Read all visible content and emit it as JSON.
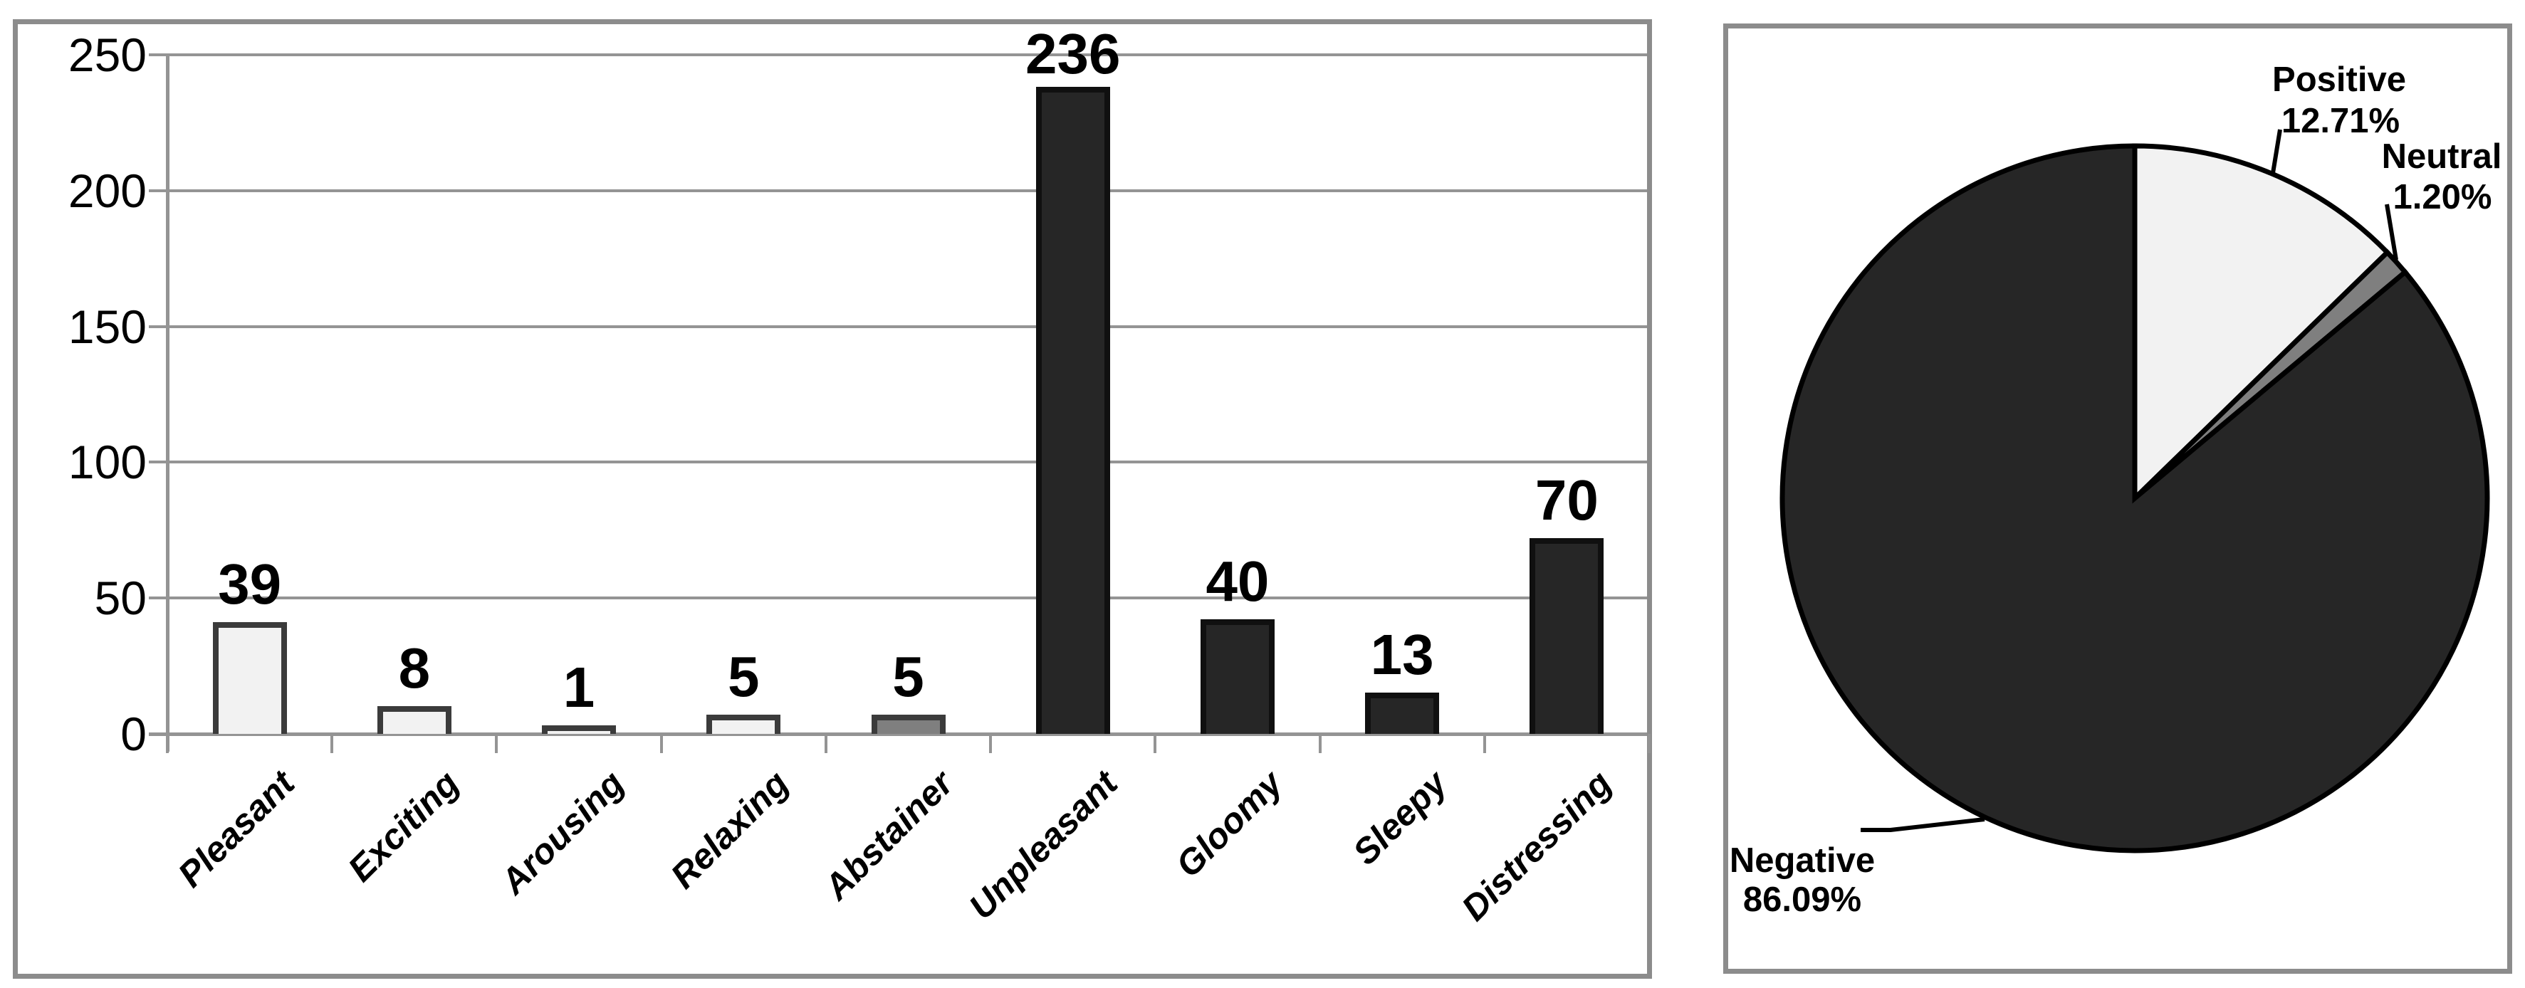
{
  "figure": {
    "description": "Two-panel figure: bar chart of word categories and pie chart of sentiment share"
  },
  "palette": {
    "positive_fill": "#f2f2f2",
    "neutral_fill": "#7f7f7f",
    "negative_fill": "#262626",
    "light_bar_stroke": "#3b3b3b",
    "dark_bar_stroke": "#101010",
    "grid": "#949494",
    "panel_border": "#8c8c8c",
    "pie_outline": "#000000",
    "text": "#000000"
  },
  "chart_data": [
    {
      "type": "bar",
      "title": "",
      "xlabel": "",
      "ylabel": "",
      "categories": [
        "Pleasant",
        "Exciting",
        "Arousing",
        "Relaxing",
        "Abstainer",
        "Unpleasant",
        "Gloomy",
        "Sleepy",
        "Distressing"
      ],
      "values": [
        39,
        8,
        1,
        5,
        5,
        236,
        40,
        13,
        70
      ],
      "value_labels": [
        "39",
        "8",
        "1",
        "5",
        "5",
        "236",
        "40",
        "13",
        "70"
      ],
      "groups": [
        "positive",
        "positive",
        "positive",
        "positive",
        "neutral",
        "negative",
        "negative",
        "negative",
        "negative"
      ],
      "y_ticks": [
        0,
        50,
        100,
        150,
        200,
        250
      ],
      "y_tick_labels": [
        "0",
        "50",
        "100",
        "150",
        "200",
        "250"
      ],
      "ylim": [
        0,
        250
      ],
      "grid": true,
      "legend": "none"
    },
    {
      "type": "pie",
      "title": "",
      "direction": "clockwise",
      "start_angle_deg": 0,
      "slices": [
        {
          "name": "Positive",
          "pct": 12.71,
          "pct_label": "12.71%",
          "color_key": "positive_fill"
        },
        {
          "name": "Neutral",
          "pct": 1.2,
          "pct_label": "1.20%",
          "color_key": "neutral_fill"
        },
        {
          "name": "Negative",
          "pct": 86.09,
          "pct_label": "86.09%",
          "color_key": "negative_fill"
        }
      ],
      "legend": "none"
    }
  ]
}
